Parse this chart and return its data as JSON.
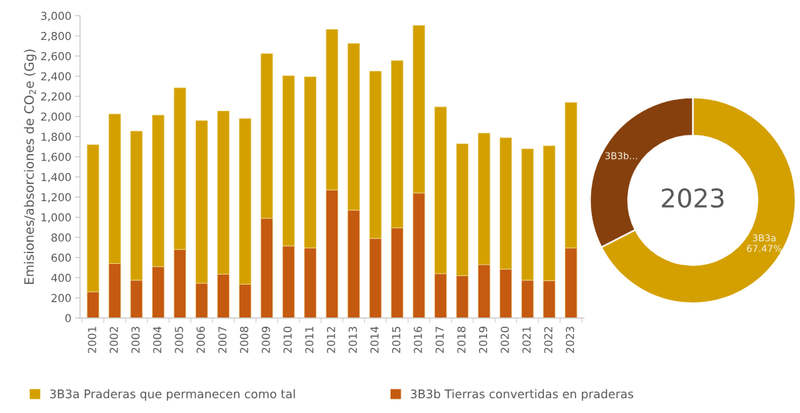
{
  "chart_data": [
    {
      "type": "bar",
      "stacked": true,
      "ylabel": "Emisiones/absorciones de CO$_{2}$e (Gg)",
      "categories": [
        "2001",
        "2002",
        "2003",
        "2004",
        "2005",
        "2006",
        "2007",
        "2008",
        "2009",
        "2010",
        "2011",
        "2012",
        "2013",
        "2014",
        "2015",
        "2016",
        "2017",
        "2018",
        "2019",
        "2020",
        "2021",
        "2022",
        "2023"
      ],
      "series": [
        {
          "name": "3B3b Tierras convertidas en praderas",
          "color": "#c55a11",
          "values": [
            260,
            540,
            375,
            510,
            680,
            345,
            435,
            335,
            990,
            715,
            695,
            1270,
            1070,
            790,
            895,
            1240,
            440,
            420,
            530,
            485,
            375,
            370,
            695
          ]
        },
        {
          "name": "3B3a Praderas que permanecen como tal",
          "color": "#d4a000",
          "values": [
            1460,
            1485,
            1480,
            1505,
            1605,
            1615,
            1620,
            1645,
            1635,
            1690,
            1700,
            1595,
            1655,
            1660,
            1660,
            1665,
            1655,
            1310,
            1305,
            1305,
            1305,
            1340,
            1445
          ]
        }
      ],
      "ylim": [
        0,
        3000
      ],
      "yticks": [
        0,
        {
          "value": 200,
          "label": "200"
        },
        {
          "value": 400,
          "label": "400"
        },
        {
          "value": 600,
          "label": "600"
        },
        {
          "value": 800,
          "label": "800"
        },
        {
          "value": 1000,
          "label": "1,000"
        },
        {
          "value": 1200,
          "label": "1,200"
        },
        {
          "value": 1400,
          "label": "1,400"
        },
        {
          "value": 1600,
          "label": "1,600"
        },
        {
          "value": 1800,
          "label": "1,800"
        },
        {
          "value": 2000,
          "label": "2,000"
        },
        {
          "value": 2200,
          "label": "2,200"
        },
        {
          "value": 2400,
          "label": "2,400"
        },
        {
          "value": 2600,
          "label": "2,600"
        },
        {
          "value": 2800,
          "label": "2,800"
        },
        {
          "value": 3000,
          "label": "3,000"
        }
      ],
      "grid": false,
      "legend": "bottom"
    },
    {
      "type": "donut",
      "categories": [
        "3B3a",
        "3B3b..."
      ],
      "values": [
        67.47,
        32.53
      ],
      "colors": [
        "#d4a000",
        "#86400e"
      ],
      "value_labels": [
        "67.47%",
        null
      ],
      "annotations": [
        "2023"
      ]
    }
  ]
}
